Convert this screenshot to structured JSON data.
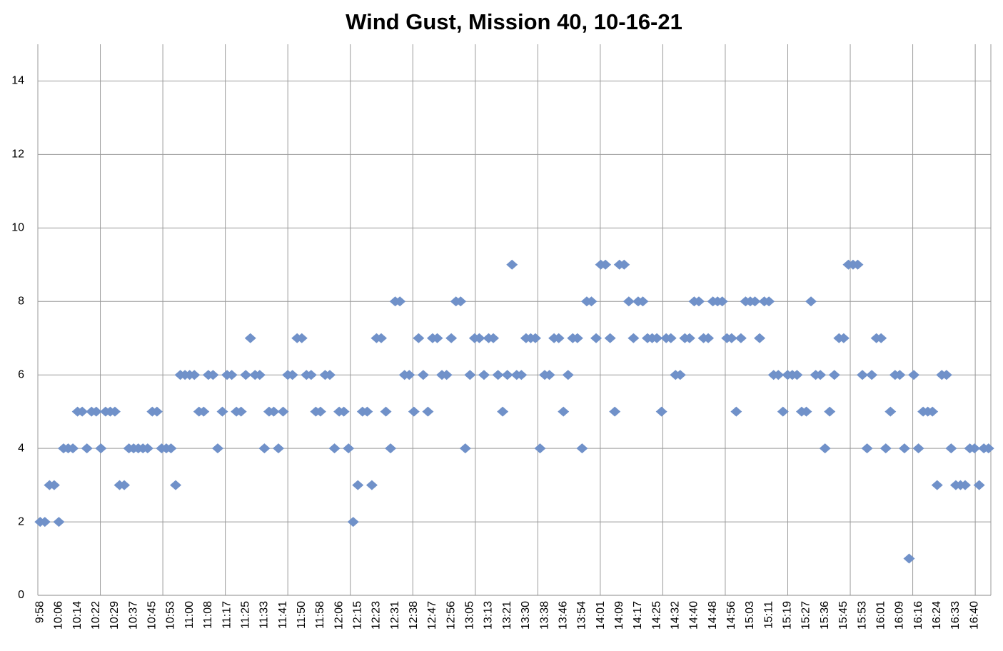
{
  "chart_data": {
    "type": "scatter",
    "title": "Wind Gust, Mission 40, 10-16-21",
    "categories": [
      "9:58",
      null,
      null,
      null,
      "10:06",
      null,
      null,
      null,
      "10:14",
      null,
      null,
      null,
      "10:22",
      null,
      null,
      null,
      "10:29",
      null,
      null,
      null,
      "10:37",
      null,
      null,
      null,
      "10:45",
      null,
      null,
      null,
      "10:53",
      null,
      null,
      null,
      "11:00",
      null,
      null,
      null,
      "11:08",
      null,
      null,
      null,
      "11:17",
      null,
      null,
      null,
      "11:25",
      null,
      null,
      null,
      "11:33",
      null,
      null,
      null,
      "11:41",
      null,
      null,
      null,
      "11:50",
      null,
      null,
      null,
      "11:58",
      null,
      null,
      null,
      "12:06",
      null,
      null,
      null,
      "12:15",
      null,
      null,
      null,
      "12:23",
      null,
      null,
      null,
      "12:31",
      null,
      null,
      null,
      "12:38",
      null,
      null,
      null,
      "12:47",
      null,
      null,
      null,
      "12:56",
      null,
      null,
      null,
      "13:05",
      null,
      null,
      null,
      "13:13",
      null,
      null,
      null,
      "13:21",
      null,
      null,
      null,
      "13:30",
      null,
      null,
      null,
      "13:38",
      null,
      null,
      null,
      "13:46",
      null,
      null,
      null,
      "13:54",
      null,
      null,
      null,
      "14:01",
      null,
      null,
      null,
      "14:09",
      null,
      null,
      null,
      "14:17",
      null,
      null,
      null,
      "14:25",
      null,
      null,
      null,
      "14:32",
      null,
      null,
      null,
      "14:40",
      null,
      null,
      null,
      "14:48",
      null,
      null,
      null,
      "14:56",
      null,
      null,
      null,
      "15:03",
      null,
      null,
      null,
      "15:11",
      null,
      null,
      null,
      "15:19",
      null,
      null,
      null,
      "15:27",
      null,
      null,
      null,
      "15:36",
      null,
      null,
      null,
      "15:45",
      null,
      null,
      null,
      "15:53",
      null,
      null,
      null,
      "16:01",
      null,
      null,
      null,
      "16:09",
      null,
      null,
      null,
      "16:16",
      null,
      null,
      null,
      "16:24",
      null,
      null,
      null,
      "16:33",
      null,
      null,
      null,
      "16:40",
      null,
      null,
      null
    ],
    "values": [
      2,
      2,
      3,
      3,
      2,
      4,
      4,
      4,
      5,
      5,
      4,
      5,
      5,
      4,
      5,
      5,
      5,
      3,
      3,
      4,
      4,
      4,
      4,
      4,
      5,
      5,
      4,
      4,
      4,
      3,
      6,
      6,
      6,
      6,
      5,
      5,
      6,
      6,
      4,
      5,
      6,
      6,
      5,
      5,
      6,
      7,
      6,
      6,
      4,
      5,
      5,
      4,
      5,
      6,
      6,
      7,
      7,
      6,
      6,
      5,
      5,
      6,
      6,
      4,
      5,
      5,
      4,
      2,
      3,
      5,
      5,
      3,
      7,
      7,
      5,
      4,
      8,
      8,
      6,
      6,
      5,
      7,
      6,
      5,
      7,
      7,
      6,
      6,
      7,
      8,
      8,
      4,
      6,
      7,
      7,
      6,
      7,
      7,
      6,
      5,
      6,
      9,
      6,
      6,
      7,
      7,
      7,
      4,
      6,
      6,
      7,
      7,
      5,
      6,
      7,
      7,
      4,
      8,
      8,
      7,
      9,
      9,
      7,
      5,
      9,
      9,
      8,
      7,
      8,
      8,
      7,
      7,
      7,
      5,
      7,
      7,
      6,
      6,
      7,
      7,
      8,
      8,
      7,
      7,
      8,
      8,
      8,
      7,
      7,
      5,
      7,
      8,
      8,
      8,
      7,
      8,
      8,
      6,
      6,
      5,
      6,
      6,
      6,
      5,
      5,
      8,
      6,
      6,
      4,
      5,
      6,
      7,
      7,
      9,
      9,
      9,
      6,
      4,
      6,
      7,
      7,
      4,
      5,
      6,
      6,
      4,
      1,
      6,
      4,
      5,
      5,
      5,
      3,
      6,
      6,
      4,
      3,
      3,
      3,
      4,
      4,
      3,
      4,
      4
    ],
    "color": "#7091c9",
    "ylim": [
      0,
      15
    ],
    "yticks": [
      0,
      2,
      4,
      6,
      8,
      10,
      12,
      14
    ],
    "grid": true
  }
}
